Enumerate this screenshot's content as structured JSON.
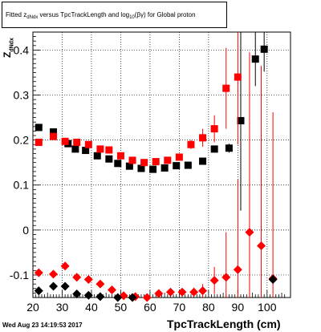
{
  "title": {
    "t1": "Fitted  z",
    "sub1": "dNdx",
    "t2": " versus TpcTrackLength and log",
    "sub2": "10",
    "t3": "(βγ) for Global proton"
  },
  "datestamp": "Wed Aug 23 14:19:53 2017",
  "ylabel_main": "Z",
  "ylabel_sub": "dNdx",
  "chart_data": {
    "type": "scatter",
    "xlabel": "TpcTrackLength (cm)",
    "xlim": [
      20,
      108
    ],
    "ylim": [
      -0.15,
      0.44
    ],
    "xticks": [
      20,
      25,
      30,
      35,
      40,
      45,
      50,
      55,
      60,
      65,
      70,
      75,
      80,
      85,
      90,
      95,
      100
    ],
    "xticklabels": [
      "20",
      "30",
      "40",
      "50",
      "60",
      "70",
      "80",
      "90",
      "100"
    ],
    "xticklabel_pos": [
      20,
      30,
      40,
      50,
      60,
      70,
      80,
      90,
      100
    ],
    "yticks": [
      -0.1,
      0,
      0.1,
      0.2,
      0.3,
      0.4
    ],
    "yticklabels": [
      "-0.1",
      "0",
      "0.1",
      "0.2",
      "0.3",
      "0.4"
    ],
    "grid": true,
    "series": [
      {
        "marker": "square",
        "color": "#000000",
        "points": [
          {
            "x": 22,
            "y": 0.228,
            "err": 0.004
          },
          {
            "x": 27,
            "y": 0.218,
            "err": 0.004
          },
          {
            "x": 32,
            "y": 0.192,
            "err": 0.004
          },
          {
            "x": 34.5,
            "y": 0.18,
            "err": 0.004
          },
          {
            "x": 38,
            "y": 0.177,
            "err": 0.004
          },
          {
            "x": 42,
            "y": 0.165,
            "err": 0.004
          },
          {
            "x": 46,
            "y": 0.158,
            "err": 0.004
          },
          {
            "x": 49,
            "y": 0.148,
            "err": 0.004
          },
          {
            "x": 53,
            "y": 0.142,
            "err": 0.004
          },
          {
            "x": 57,
            "y": 0.137,
            "err": 0.004
          },
          {
            "x": 61,
            "y": 0.135,
            "err": 0.004
          },
          {
            "x": 65,
            "y": 0.138,
            "err": 0.004
          },
          {
            "x": 69,
            "y": 0.143,
            "err": 0.004
          },
          {
            "x": 73,
            "y": 0.144,
            "err": 0.004
          },
          {
            "x": 78,
            "y": 0.153,
            "err": 0.005
          },
          {
            "x": 82,
            "y": 0.18,
            "err": 0.006
          },
          {
            "x": 87,
            "y": 0.182,
            "err": 0.01
          },
          {
            "x": 91,
            "y": 0.243,
            "err": 0.2
          },
          {
            "x": 96,
            "y": 0.38,
            "err": 0.06
          },
          {
            "x": 99,
            "y": 0.402,
            "err": 0.05
          }
        ]
      },
      {
        "marker": "square",
        "color": "#ff0000",
        "points": [
          {
            "x": 22,
            "y": 0.195,
            "err": 0.004
          },
          {
            "x": 27,
            "y": 0.208,
            "err": 0.004
          },
          {
            "x": 31,
            "y": 0.197,
            "err": 0.004
          },
          {
            "x": 35,
            "y": 0.195,
            "err": 0.004
          },
          {
            "x": 39,
            "y": 0.19,
            "err": 0.004
          },
          {
            "x": 43,
            "y": 0.18,
            "err": 0.004
          },
          {
            "x": 46,
            "y": 0.178,
            "err": 0.004
          },
          {
            "x": 50,
            "y": 0.165,
            "err": 0.004
          },
          {
            "x": 54,
            "y": 0.155,
            "err": 0.004
          },
          {
            "x": 58,
            "y": 0.15,
            "err": 0.004
          },
          {
            "x": 62,
            "y": 0.152,
            "err": 0.004
          },
          {
            "x": 66,
            "y": 0.155,
            "err": 0.004
          },
          {
            "x": 70,
            "y": 0.162,
            "err": 0.005
          },
          {
            "x": 74,
            "y": 0.19,
            "err": 0.01
          },
          {
            "x": 78,
            "y": 0.205,
            "err": 0.02
          },
          {
            "x": 82,
            "y": 0.225,
            "err": 0.03
          },
          {
            "x": 86,
            "y": 0.315,
            "err": 0.09
          },
          {
            "x": 90,
            "y": 0.34,
            "err": 0.15
          }
        ]
      },
      {
        "marker": "diamond",
        "color": "#ff0000",
        "points": [
          {
            "x": 22,
            "y": -0.095,
            "err": 0.004
          },
          {
            "x": 27,
            "y": -0.098,
            "err": 0.004
          },
          {
            "x": 31,
            "y": -0.08,
            "err": 0.004
          },
          {
            "x": 35,
            "y": -0.105,
            "err": 0.004
          },
          {
            "x": 39,
            "y": -0.11,
            "err": 0.004
          },
          {
            "x": 43,
            "y": -0.12,
            "err": 0.004
          },
          {
            "x": 47,
            "y": -0.133,
            "err": 0.004
          },
          {
            "x": 51,
            "y": -0.146,
            "err": 0.004
          },
          {
            "x": 55,
            "y": -0.148,
            "err": 0.004
          },
          {
            "x": 59,
            "y": -0.15,
            "err": 0.004
          },
          {
            "x": 63,
            "y": -0.141,
            "err": 0.004
          },
          {
            "x": 67,
            "y": -0.138,
            "err": 0.004
          },
          {
            "x": 71,
            "y": -0.138,
            "err": 0.005
          },
          {
            "x": 75,
            "y": -0.138,
            "err": 0.01
          },
          {
            "x": 78,
            "y": -0.135,
            "err": 0.015
          },
          {
            "x": 82,
            "y": -0.112,
            "err": 0.03
          },
          {
            "x": 86,
            "y": -0.105,
            "err": 0.1
          },
          {
            "x": 90,
            "y": -0.088,
            "err": 0.2
          },
          {
            "x": 94,
            "y": -0.005,
            "err": 0.4
          },
          {
            "x": 98,
            "y": -0.035,
            "err": 0.4
          },
          {
            "x": 102,
            "y": -0.108,
            "err": 0.37
          }
        ]
      },
      {
        "marker": "diamond",
        "color": "#000000",
        "points": [
          {
            "x": 22,
            "y": -0.135,
            "err": 0.004
          },
          {
            "x": 27,
            "y": -0.125,
            "err": 0.004
          },
          {
            "x": 31,
            "y": -0.125,
            "err": 0.004
          },
          {
            "x": 35,
            "y": -0.142,
            "err": 0.004
          },
          {
            "x": 39,
            "y": -0.145,
            "err": 0.004
          },
          {
            "x": 43,
            "y": -0.148,
            "err": 0.004
          },
          {
            "x": 49,
            "y": -0.15,
            "err": 0.004
          },
          {
            "x": 54,
            "y": -0.15,
            "err": 0.004
          },
          {
            "x": 102,
            "y": -0.11,
            "err": 0.01
          }
        ]
      }
    ]
  }
}
